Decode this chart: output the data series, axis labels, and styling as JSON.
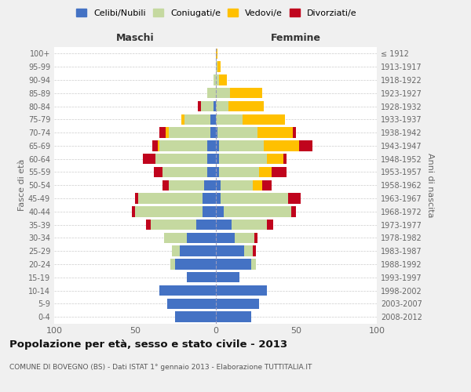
{
  "age_groups": [
    "0-4",
    "5-9",
    "10-14",
    "15-19",
    "20-24",
    "25-29",
    "30-34",
    "35-39",
    "40-44",
    "45-49",
    "50-54",
    "55-59",
    "60-64",
    "65-69",
    "70-74",
    "75-79",
    "80-84",
    "85-89",
    "90-94",
    "95-99",
    "100+"
  ],
  "birth_years": [
    "2008-2012",
    "2003-2007",
    "1998-2002",
    "1993-1997",
    "1988-1992",
    "1983-1987",
    "1978-1982",
    "1973-1977",
    "1968-1972",
    "1963-1967",
    "1958-1962",
    "1953-1957",
    "1948-1952",
    "1943-1947",
    "1938-1942",
    "1933-1937",
    "1928-1932",
    "1923-1927",
    "1918-1922",
    "1913-1917",
    "≤ 1912"
  ],
  "maschi": {
    "celibi": [
      25,
      30,
      35,
      18,
      25,
      22,
      18,
      12,
      8,
      8,
      7,
      5,
      5,
      5,
      3,
      3,
      1,
      0,
      0,
      0,
      0
    ],
    "coniugati": [
      0,
      0,
      0,
      0,
      3,
      5,
      14,
      28,
      42,
      40,
      22,
      28,
      32,
      30,
      26,
      16,
      8,
      5,
      1,
      0,
      0
    ],
    "vedovi": [
      0,
      0,
      0,
      0,
      0,
      0,
      0,
      0,
      0,
      0,
      0,
      0,
      0,
      1,
      2,
      2,
      0,
      0,
      0,
      0,
      0
    ],
    "divorziati": [
      0,
      0,
      0,
      0,
      0,
      0,
      0,
      3,
      2,
      2,
      4,
      5,
      8,
      3,
      4,
      0,
      2,
      0,
      0,
      0,
      0
    ]
  },
  "femmine": {
    "nubili": [
      22,
      27,
      32,
      15,
      22,
      18,
      12,
      10,
      5,
      3,
      3,
      2,
      2,
      2,
      1,
      0,
      0,
      0,
      0,
      0,
      0
    ],
    "coniugate": [
      0,
      0,
      0,
      0,
      3,
      5,
      12,
      22,
      42,
      42,
      20,
      25,
      30,
      28,
      25,
      17,
      8,
      9,
      2,
      1,
      0
    ],
    "vedove": [
      0,
      0,
      0,
      0,
      0,
      0,
      0,
      0,
      0,
      0,
      6,
      8,
      10,
      22,
      22,
      26,
      22,
      20,
      5,
      2,
      1
    ],
    "divorziate": [
      0,
      0,
      0,
      0,
      0,
      2,
      2,
      4,
      3,
      8,
      6,
      9,
      2,
      8,
      2,
      0,
      0,
      0,
      0,
      0,
      0
    ]
  },
  "colors": {
    "celibi_nubili": "#4472c4",
    "coniugati": "#c5d9a0",
    "vedovi": "#ffc000",
    "divorziati": "#c0041d"
  },
  "xlim": 100,
  "title": "Popolazione per età, sesso e stato civile - 2013",
  "subtitle": "COMUNE DI BOVEGNO (BS) - Dati ISTAT 1° gennaio 2013 - Elaborazione TUTTITALIA.IT",
  "xlabel_left": "Maschi",
  "xlabel_right": "Femmine",
  "ylabel_left": "Fasce di età",
  "ylabel_right": "Anni di nascita",
  "bg_color": "#f0f0f0",
  "plot_bg": "#ffffff"
}
